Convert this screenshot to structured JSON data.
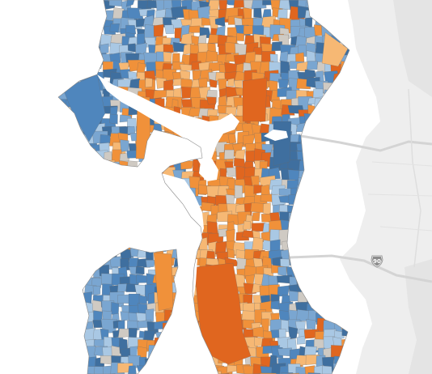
{
  "map": {
    "colors": {
      "background": "#ffffff",
      "land": "#eeeeee",
      "land_dark": "#e4e4e4",
      "road": "#d4d4d4",
      "blue_dark": "#3f6f9f",
      "blue": "#4f86bd",
      "blue_mid": "#7aa6d1",
      "blue_light": "#a9c8e4",
      "neutral": "#cfcac3",
      "orange_light": "#f6b874",
      "orange": "#f0913a",
      "orange_dark": "#e0661f",
      "boundary": "#6b6b6b"
    },
    "highway_shield": {
      "label": "90",
      "icon": "interstate-shield-icon"
    }
  }
}
